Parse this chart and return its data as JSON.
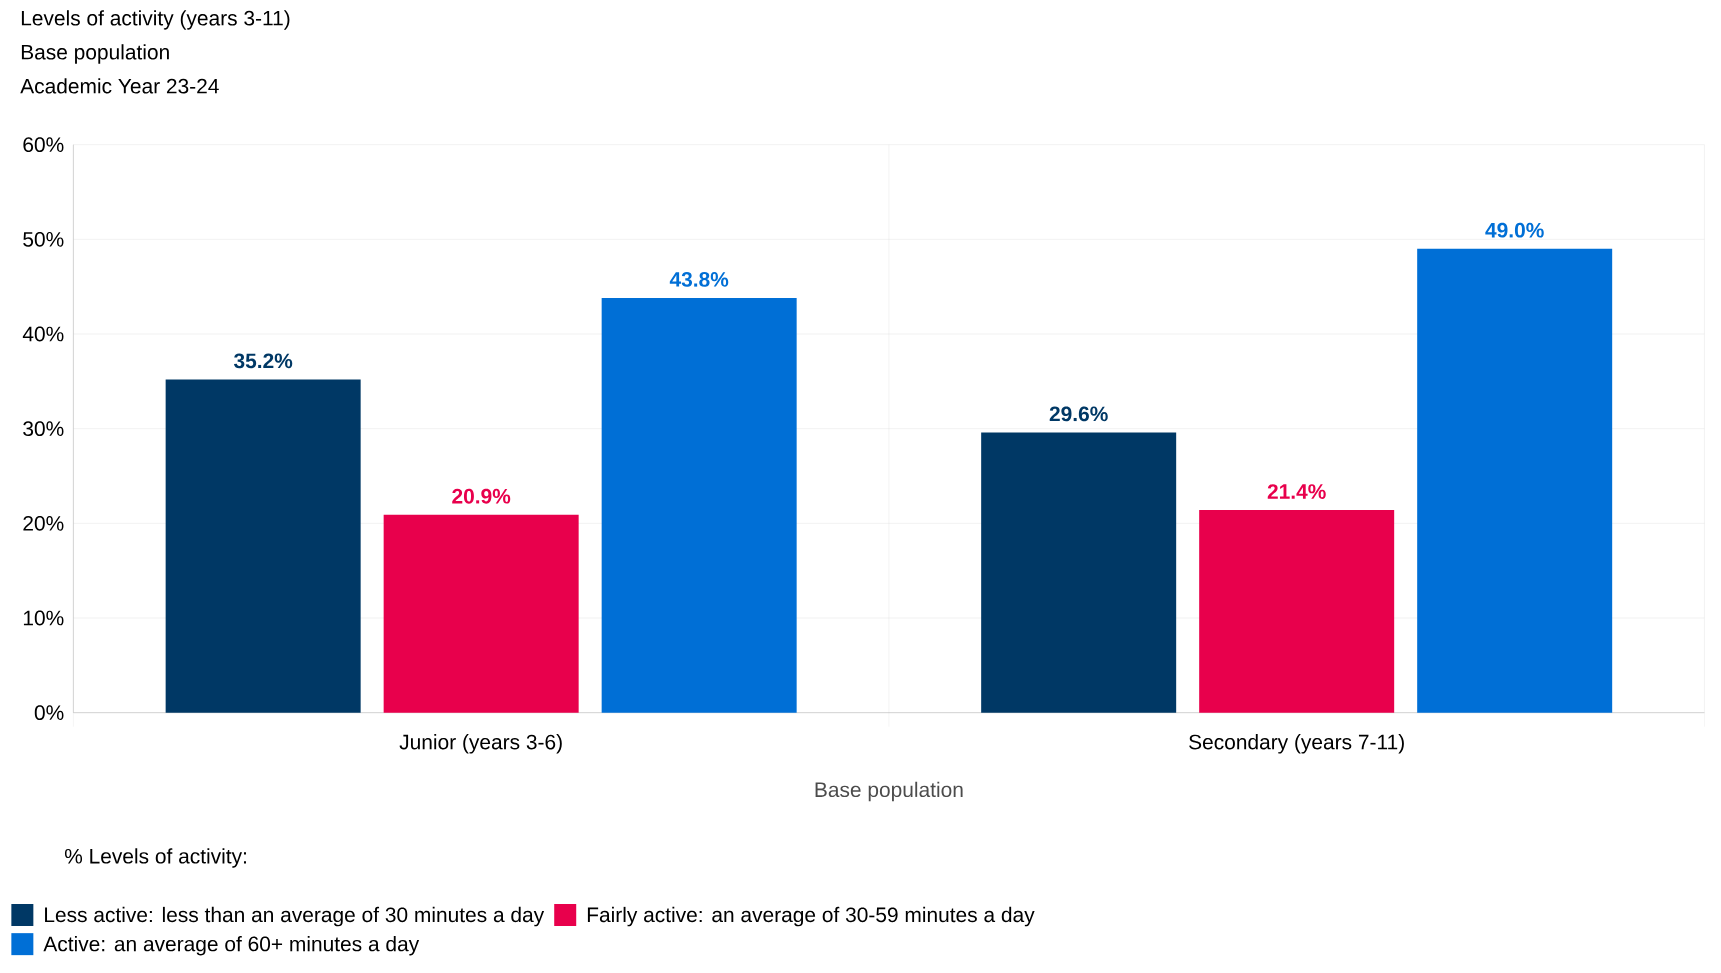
{
  "chart_data": {
    "type": "bar",
    "title": "Levels of activity (years 3-11)",
    "subtitle": "Base population",
    "annotations": [
      "Academic Year 23-24"
    ],
    "categories": [
      "Junior (years 3-6)",
      "Secondary (years 7-11)"
    ],
    "xlabel": "Base population",
    "legend_title": "% Levels of activity:",
    "series": [
      {
        "name": "Less active: less than an average of 30 minutes a day",
        "color": "#003865",
        "values": [
          35.2,
          29.6
        ],
        "value_labels": [
          "35.2%",
          "29.6%"
        ]
      },
      {
        "name": "Fairly active: an average of 30-59 minutes a day",
        "color": "#e8004c",
        "values": [
          20.9,
          21.4
        ],
        "value_labels": [
          "20.9%",
          "21.4%"
        ]
      },
      {
        "name": "Active: an average of 60+ minutes a day",
        "color": "#006fd6",
        "values": [
          43.8,
          49.0
        ],
        "value_labels": [
          "43.8%",
          "49.0%"
        ]
      }
    ],
    "ylim": [
      0,
      60
    ],
    "yticks": [
      {
        "value": 0,
        "label": "0%"
      },
      {
        "value": 10,
        "label": "10%"
      },
      {
        "value": 20,
        "label": "20%"
      },
      {
        "value": 30,
        "label": "30%"
      },
      {
        "value": 40,
        "label": "40%"
      },
      {
        "value": 50,
        "label": "50%"
      },
      {
        "value": 60,
        "label": "60%"
      }
    ],
    "grid": true,
    "legend": "bottom"
  }
}
